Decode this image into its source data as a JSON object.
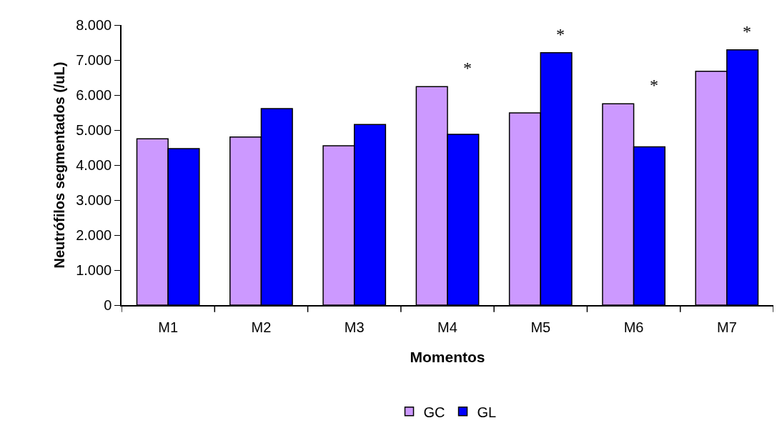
{
  "chart_data": {
    "type": "bar",
    "xlabel": "Momentos",
    "ylabel": "Neutrófilos segmentados (/uL)",
    "categories": [
      "M1",
      "M2",
      "M3",
      "M4",
      "M5",
      "M6",
      "M7"
    ],
    "series": [
      {
        "name": "GC",
        "color": "#cc99ff",
        "values": [
          4750,
          4800,
          4550,
          6240,
          5490,
          5750,
          6680
        ]
      },
      {
        "name": "GL",
        "color": "#0000ff",
        "values": [
          4470,
          5610,
          5160,
          4880,
          7210,
          4520,
          7290
        ]
      }
    ],
    "ylim": [
      0,
      8000
    ],
    "yticks": [
      {
        "value": 0,
        "label": "0"
      },
      {
        "value": 1000,
        "label": "1.000"
      },
      {
        "value": 2000,
        "label": "2.000"
      },
      {
        "value": 3000,
        "label": "3.000"
      },
      {
        "value": 4000,
        "label": "4.000"
      },
      {
        "value": 5000,
        "label": "5.000"
      },
      {
        "value": 6000,
        "label": "6.000"
      },
      {
        "value": 7000,
        "label": "7.000"
      },
      {
        "value": 8000,
        "label": "8.000"
      }
    ],
    "annotations": [
      "*",
      "*",
      "*",
      "*"
    ],
    "grid": false,
    "legend": "bottom"
  }
}
